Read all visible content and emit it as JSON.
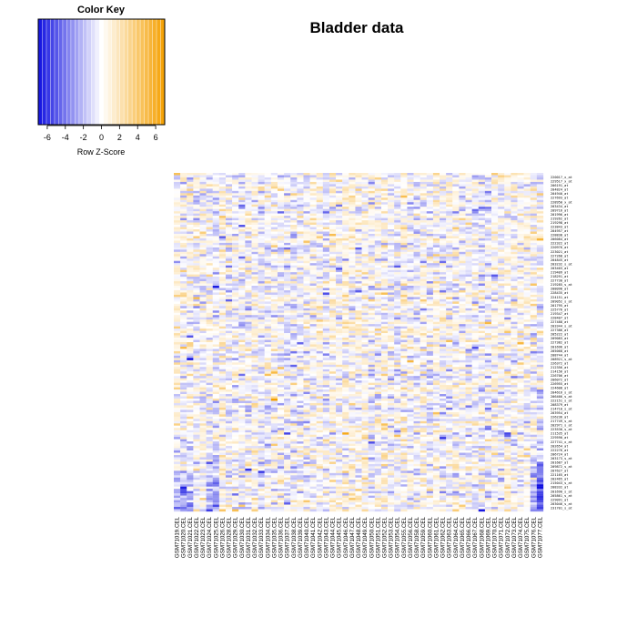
{
  "chart_data": {
    "type": "heatmap",
    "title": "Bladder data",
    "color_key": {
      "title": "Color Key",
      "xlabel": "Row Z-Score",
      "ticks": [
        -6,
        -4,
        -2,
        0,
        2,
        4,
        6
      ],
      "tick_labels": [
        "-6",
        "-4",
        "-2",
        "0",
        "2",
        "4",
        "6"
      ],
      "range": [
        -7,
        7
      ],
      "low_color": "#1010e0",
      "mid_color": "#ffffff",
      "high_color": "#f5a000"
    },
    "columns": [
      "GSM71019.CEL",
      "GSM71020.CEL",
      "GSM71021.CEL",
      "GSM71022.CEL",
      "GSM71023.CEL",
      "GSM71024.CEL",
      "GSM71025.CEL",
      "GSM71026.CEL",
      "GSM71028.CEL",
      "GSM71029.CEL",
      "GSM71030.CEL",
      "GSM71031.CEL",
      "GSM71032.CEL",
      "GSM71033.CEL",
      "GSM71034.CEL",
      "GSM71035.CEL",
      "GSM71036.CEL",
      "GSM71037.CEL",
      "GSM71038.CEL",
      "GSM71039.CEL",
      "GSM71040.CEL",
      "GSM71041.CEL",
      "GSM71042.CEL",
      "GSM71043.CEL",
      "GSM71044.CEL",
      "GSM71045.CEL",
      "GSM71046.CEL",
      "GSM71047.CEL",
      "GSM71048.CEL",
      "GSM71049.CEL",
      "GSM71050.CEL",
      "GSM71051.CEL",
      "GSM71052.CEL",
      "GSM71053.CEL",
      "GSM71054.CEL",
      "GSM71055.CEL",
      "GSM71056.CEL",
      "GSM71058.CEL",
      "GSM71059.CEL",
      "GSM71060.CEL",
      "GSM71061.CEL",
      "GSM71062.CEL",
      "GSM71063.CEL",
      "GSM71064.CEL",
      "GSM71065.CEL",
      "GSM71066.CEL",
      "GSM71067.CEL",
      "GSM71068.CEL",
      "GSM71069.CEL",
      "GSM71070.CEL",
      "GSM71071.CEL",
      "GSM71072.CEL",
      "GSM71073.CEL",
      "GSM71074.CEL",
      "GSM71075.CEL",
      "GSM71076.CEL",
      "GSM71077.CEL"
    ],
    "row_labels": [
      "220017_x_at",
      "229517_x_at",
      "206191_at",
      "204824_at",
      "204940_at",
      "227693_at",
      "228950_x_at",
      "203434_at",
      "209716_at",
      "201996_at",
      "219262_at",
      "219298_at",
      "223843_at",
      "204957_at",
      "228838_at",
      "206084_at",
      "222322_at",
      "220976_at",
      "223021_at",
      "227268_at",
      "204845_at",
      "203232_s_at",
      "203403_at",
      "219409_at",
      "218291_at",
      "227730_at",
      "219285_s_at",
      "208098_at",
      "228435_at",
      "224151_at",
      "209052_s_at",
      "201795_at",
      "225776_at",
      "219347_at",
      "228407_at",
      "227488_at",
      "203344_s_at",
      "227386_at",
      "205222_at",
      "209083_at",
      "227382_at",
      "201696_at",
      "205068_at",
      "208744_at",
      "208921_s_at",
      "226372_at",
      "212356_at",
      "214156_at",
      "226706_at",
      "206072_at",
      "226955_at",
      "224608_at",
      "204616_s_at",
      "206466_s_at",
      "222151_s_at",
      "208379_at",
      "214710_s_at",
      "203954_at",
      "226236_at",
      "217749_s_at",
      "202971_s_at",
      "223530_s_at",
      "211535_at",
      "229590_at",
      "227741_x_at",
      "202654_at",
      "222276_at",
      "206724_at",
      "203173_s_at",
      "201687_at",
      "209872_s_at",
      "207627_at",
      "221165_at",
      "202465_at",
      "215043_s_at",
      "208332_at",
      "201690_s_at",
      "205861_s_at",
      "229091_at",
      "203046_s_at",
      "231701_s_at"
    ],
    "n_rows": 81,
    "grid": false,
    "color_key_position": "top-left"
  }
}
